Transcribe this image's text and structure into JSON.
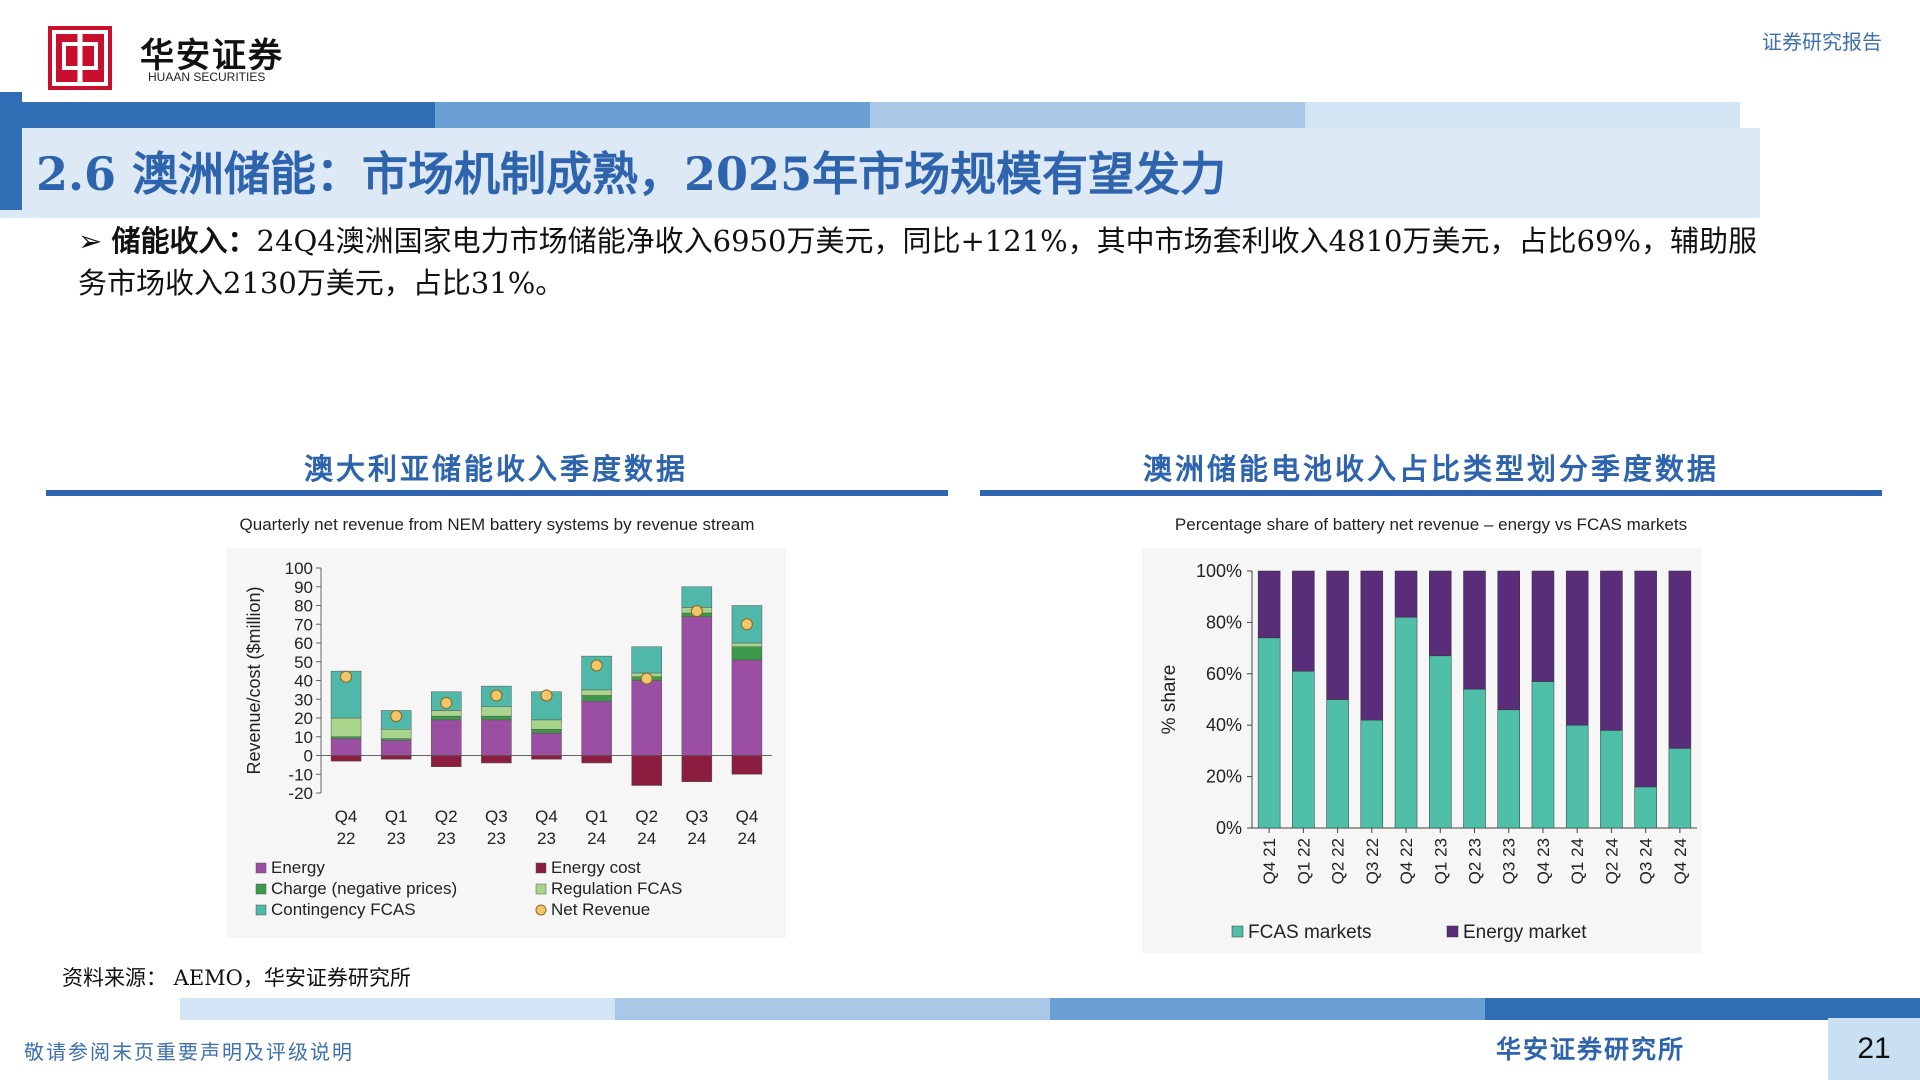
{
  "header": {
    "brand_cn": "华安证券",
    "brand_en": "HUAAN SECURITIES",
    "report_type": "证券研究报告",
    "logo_glyph": "中"
  },
  "title": "2.6 澳洲储能：市场机制成熟，2025年市场规模有望发力",
  "bullet": {
    "lead": "储能收入：",
    "text": "24Q4澳洲国家电力市场储能净收入6950万美元，同比+121%，其中市场套利收入4810万美元，占比69%，辅助服务市场收入2130万美元，占比31%。"
  },
  "left_section": {
    "title": "澳大利亚储能收入季度数据",
    "caption": "Quarterly net revenue from NEM battery systems by revenue stream"
  },
  "right_section": {
    "title": "澳洲储能电池收入占比类型划分季度数据",
    "caption": "Percentage share of battery net revenue – energy vs FCAS markets"
  },
  "source": "资料来源： AEMO，华安证券研究所",
  "footer": {
    "disclaimer": "敬请参阅末页重要声明及评级说明",
    "org": "华安证券研究所",
    "page": "21"
  },
  "colors": {
    "brand_blue": "#2e64ad",
    "energy": "#9b4fa3",
    "energy_cost": "#8b1e3f",
    "charge": "#3a9a4a",
    "regulation_fcas": "#a8d48c",
    "contingency_fcas": "#4fb8a8",
    "net_revenue": "#f3c66b",
    "fcas_markets": "#4fbfa8",
    "energy_market": "#5a2d7a"
  },
  "chart_data": [
    {
      "type": "bar",
      "title": "Quarterly net revenue from NEM battery systems by revenue stream",
      "ylabel": "Revenue/cost ($million)",
      "ylim": [
        -20,
        100
      ],
      "yticks": [
        "100",
        "90",
        "80",
        "70",
        "60",
        "50",
        "40",
        "30",
        "20",
        "10",
        "0",
        "-10",
        "-20"
      ],
      "categories": [
        [
          "Q4",
          "22"
        ],
        [
          "Q1",
          "23"
        ],
        [
          "Q2",
          "23"
        ],
        [
          "Q3",
          "23"
        ],
        [
          "Q4",
          "23"
        ],
        [
          "Q1",
          "24"
        ],
        [
          "Q2",
          "24"
        ],
        [
          "Q3",
          "24"
        ],
        [
          "Q4",
          "24"
        ]
      ],
      "series": [
        {
          "name": "Energy",
          "values": [
            9,
            8,
            19,
            19,
            12,
            29,
            40,
            74,
            51
          ]
        },
        {
          "name": "Charge (negative prices)",
          "values": [
            1,
            1,
            2,
            2,
            2,
            3,
            2,
            2,
            7
          ]
        },
        {
          "name": "Regulation FCAS",
          "values": [
            10,
            5,
            3,
            5,
            5,
            3,
            2,
            3,
            2
          ]
        },
        {
          "name": "Contingency FCAS",
          "values": [
            25,
            10,
            10,
            11,
            15,
            18,
            14,
            11,
            20
          ]
        },
        {
          "name": "Energy cost",
          "values": [
            -3,
            -2,
            -6,
            -4,
            -2,
            -4,
            -16,
            -14,
            -10
          ]
        }
      ],
      "net_revenue": {
        "name": "Net Revenue",
        "values": [
          42,
          21,
          28,
          32,
          32,
          48,
          41,
          77,
          70
        ]
      },
      "legend": [
        "Energy",
        "Energy cost",
        "Charge (negative prices)",
        "Regulation FCAS",
        "Contingency FCAS",
        "Net Revenue"
      ],
      "legend_position": "bottom"
    },
    {
      "type": "bar",
      "stacked": true,
      "title": "Percentage share of battery net revenue – energy vs FCAS markets",
      "ylabel": "% share",
      "ylim": [
        0,
        100
      ],
      "yticks": [
        "100%",
        "80%",
        "60%",
        "40%",
        "20%",
        "0%"
      ],
      "categories": [
        "Q4 21",
        "Q1 22",
        "Q2 22",
        "Q3 22",
        "Q4 22",
        "Q1 23",
        "Q2 23",
        "Q3 23",
        "Q4 23",
        "Q1 24",
        "Q2 24",
        "Q3 24",
        "Q4 24"
      ],
      "series": [
        {
          "name": "FCAS markets",
          "values": [
            74,
            61,
            50,
            42,
            82,
            67,
            54,
            46,
            57,
            40,
            38,
            16,
            31
          ]
        },
        {
          "name": "Energy market",
          "values": [
            26,
            39,
            50,
            58,
            18,
            33,
            46,
            54,
            43,
            60,
            62,
            84,
            69
          ]
        }
      ],
      "legend_position": "bottom"
    }
  ]
}
